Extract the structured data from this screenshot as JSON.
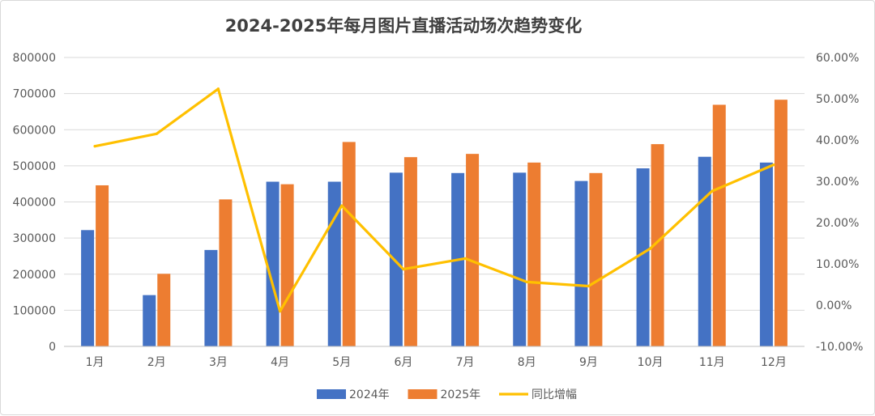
{
  "chart_data": {
    "type": "bar",
    "title": "2024-2025年每月图片直播活动场次趋势变化",
    "categories": [
      "1月",
      "2月",
      "3月",
      "4月",
      "5月",
      "6月",
      "7月",
      "8月",
      "9月",
      "10月",
      "11月",
      "12月"
    ],
    "series": [
      {
        "name": "2024年",
        "type": "bar",
        "axis": "left",
        "color": "#4472C4",
        "values": [
          322000,
          142000,
          267000,
          456000,
          456000,
          481000,
          480000,
          481000,
          458000,
          493000,
          525000,
          509000
        ]
      },
      {
        "name": "2025年",
        "type": "bar",
        "axis": "left",
        "color": "#ED7D31",
        "values": [
          446000,
          201000,
          407000,
          449000,
          566000,
          524000,
          533000,
          509000,
          480000,
          560000,
          669000,
          683000
        ]
      },
      {
        "name": "同比增幅",
        "type": "line",
        "axis": "right",
        "color": "#FFC000",
        "values": [
          38.5,
          41.5,
          52.4,
          -1.5,
          24.1,
          8.7,
          11.3,
          5.6,
          4.6,
          13.7,
          27.6,
          34.0
        ]
      }
    ],
    "left_axis": {
      "ylim": [
        0,
        800000
      ],
      "ticks": [
        "0",
        "100000",
        "200000",
        "300000",
        "400000",
        "500000",
        "600000",
        "700000",
        "800000"
      ]
    },
    "right_axis": {
      "ylim": [
        -10,
        60
      ],
      "unit": "%",
      "ticks": [
        "-10.00%",
        "0.00%",
        "10.00%",
        "20.00%",
        "30.00%",
        "40.00%",
        "50.00%",
        "60.00%"
      ]
    },
    "grid": true,
    "legend_position": "bottom"
  }
}
